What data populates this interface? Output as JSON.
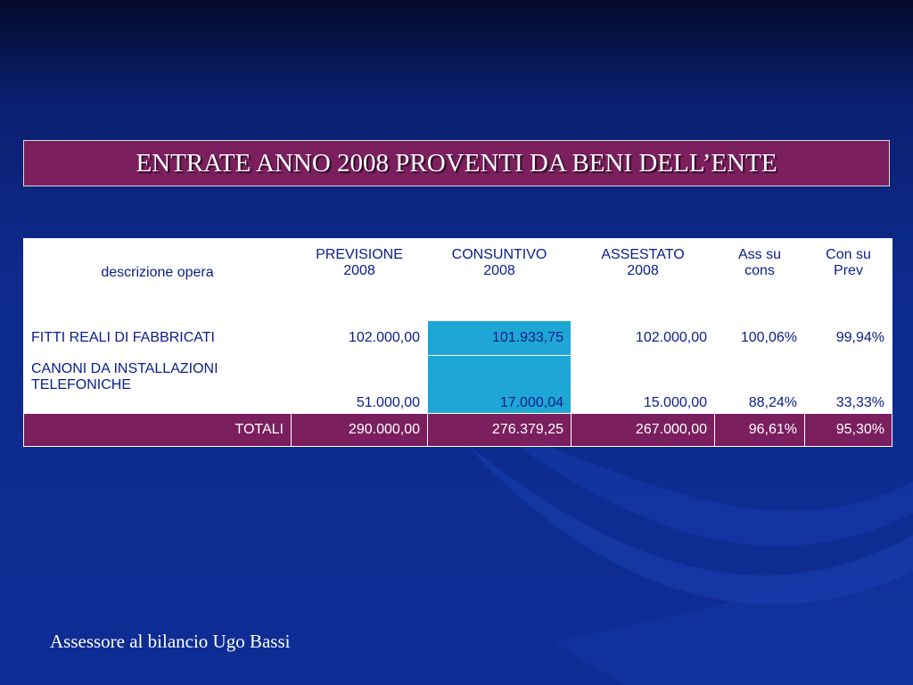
{
  "slide": {
    "title": "ENTRATE ANNO 2008 PROVENTI DA BENI DELL’ENTE",
    "footer": "Assessore al bilancio Ugo Bassi"
  },
  "colors": {
    "background": "#0d2a8c",
    "title_fill": "#7b1f5e",
    "totals_fill": "#7b1f5e",
    "highlight_column": "#1ea6d6",
    "table_text": "#0b1d8a"
  },
  "table": {
    "headers": [
      "descrizione opera",
      [
        "PREVISIONE",
        "2008"
      ],
      [
        "CONSUNTIVO",
        "2008"
      ],
      [
        "ASSESTATO",
        "2008"
      ],
      [
        "Ass su",
        "cons"
      ],
      [
        "Con su",
        "Prev"
      ]
    ],
    "rows": [
      [
        "FITTI REALI DI FABBRICATI",
        "102.000,00",
        "101.933,75",
        "102.000,00",
        "100,06%",
        "99,94%"
      ],
      [
        [
          "CANONI DA INSTALLAZIONI",
          "TELEFONICHE"
        ],
        "51.000,00",
        "17.000,04",
        "15.000,00",
        "88,24%",
        "33,33%"
      ]
    ],
    "totals": [
      "TOTALI",
      "290.000,00",
      "276.379,25",
      "267.000,00",
      "96,61%",
      "95,30%"
    ]
  }
}
